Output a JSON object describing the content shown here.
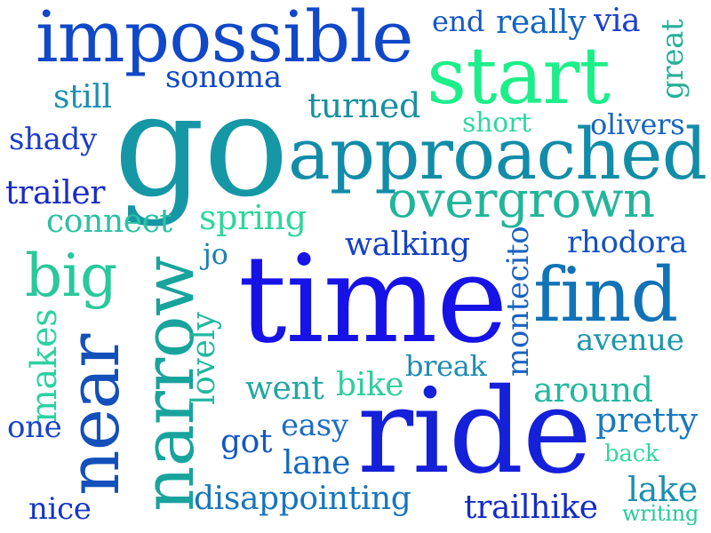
{
  "words": [
    {
      "text": "impossible",
      "color": "#1048c8"
    },
    {
      "text": "end",
      "color": "#1557c8"
    },
    {
      "text": "really",
      "color": "#1565c0"
    },
    {
      "text": "via",
      "color": "#1d3fcf"
    },
    {
      "text": "great",
      "color": "#27b097"
    },
    {
      "text": "start",
      "color": "#1cee8a"
    },
    {
      "text": "sonoma",
      "color": "#1248c5"
    },
    {
      "text": "still",
      "color": "#1d8fb1"
    },
    {
      "text": "turned",
      "color": "#18909f"
    },
    {
      "text": "short",
      "color": "#30d7a2"
    },
    {
      "text": "olivers",
      "color": "#1665c2"
    },
    {
      "text": "go",
      "color": "#1597a5"
    },
    {
      "text": "shady",
      "color": "#1c3dc8"
    },
    {
      "text": "approached",
      "color": "#128ca8"
    },
    {
      "text": "trailer",
      "color": "#1a2bc6"
    },
    {
      "text": "overgrown",
      "color": "#22b59a"
    },
    {
      "text": "connect",
      "color": "#2ec0a2"
    },
    {
      "text": "spring",
      "color": "#2ed69a"
    },
    {
      "text": "walking",
      "color": "#1541c4"
    },
    {
      "text": "rhodora",
      "color": "#1552c2"
    },
    {
      "text": "jo",
      "color": "#1d7fb3"
    },
    {
      "text": "big",
      "color": "#2ac89a"
    },
    {
      "text": "narrow",
      "color": "#19a39d"
    },
    {
      "text": "time",
      "color": "#1713e6"
    },
    {
      "text": "find",
      "color": "#1272b6"
    },
    {
      "text": "makes",
      "color": "#2ed1a1"
    },
    {
      "text": "near",
      "color": "#1450ba"
    },
    {
      "text": "lovely",
      "color": "#22b8a0"
    },
    {
      "text": "montecito",
      "color": "#1b63c0"
    },
    {
      "text": "avenue",
      "color": "#1c96ab"
    },
    {
      "text": "break",
      "color": "#1c8bb2"
    },
    {
      "text": "went",
      "color": "#22a7a3"
    },
    {
      "text": "bike",
      "color": "#2ecf9d"
    },
    {
      "text": "around",
      "color": "#24b79f"
    },
    {
      "text": "one",
      "color": "#1543c9"
    },
    {
      "text": "easy",
      "color": "#1d6cc2"
    },
    {
      "text": "pretty",
      "color": "#1779bf"
    },
    {
      "text": "got",
      "color": "#1657c4"
    },
    {
      "text": "ride",
      "color": "#1520d9"
    },
    {
      "text": "back",
      "color": "#32d79e"
    },
    {
      "text": "lane",
      "color": "#1468bf"
    },
    {
      "text": "lake",
      "color": "#1d8fb1"
    },
    {
      "text": "nice",
      "color": "#1535c9"
    },
    {
      "text": "disappointing",
      "color": "#1875bd"
    },
    {
      "text": "trailhike",
      "color": "#142bc8"
    },
    {
      "text": "writing",
      "color": "#2ac89a"
    }
  ]
}
